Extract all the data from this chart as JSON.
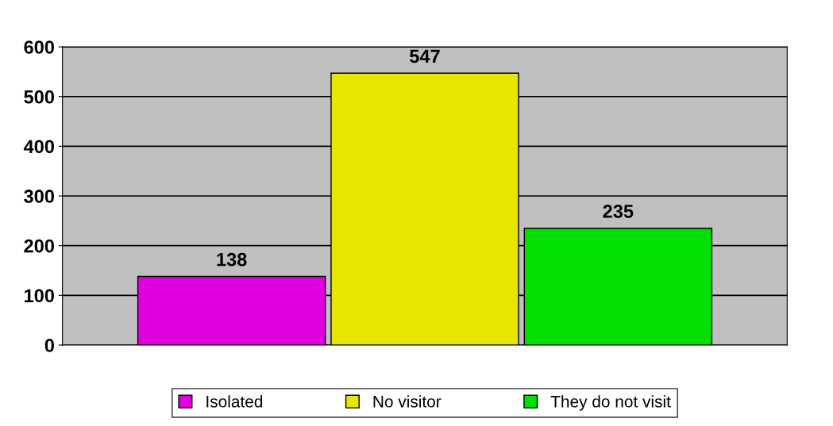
{
  "chart_data": {
    "type": "bar",
    "categories": [
      null
    ],
    "series": [
      {
        "name": "Isolated",
        "color": "#e000e0",
        "values": [
          138
        ]
      },
      {
        "name": "No visitor",
        "color": "#e6e600",
        "values": [
          547
        ]
      },
      {
        "name": "They do not visit",
        "color": "#00e000",
        "values": [
          235
        ]
      }
    ],
    "ylim": [
      0,
      600
    ],
    "yticks": [
      0,
      100,
      200,
      300,
      400,
      500,
      600
    ],
    "grid": "y",
    "legend": "bottom",
    "data_labels": true
  }
}
